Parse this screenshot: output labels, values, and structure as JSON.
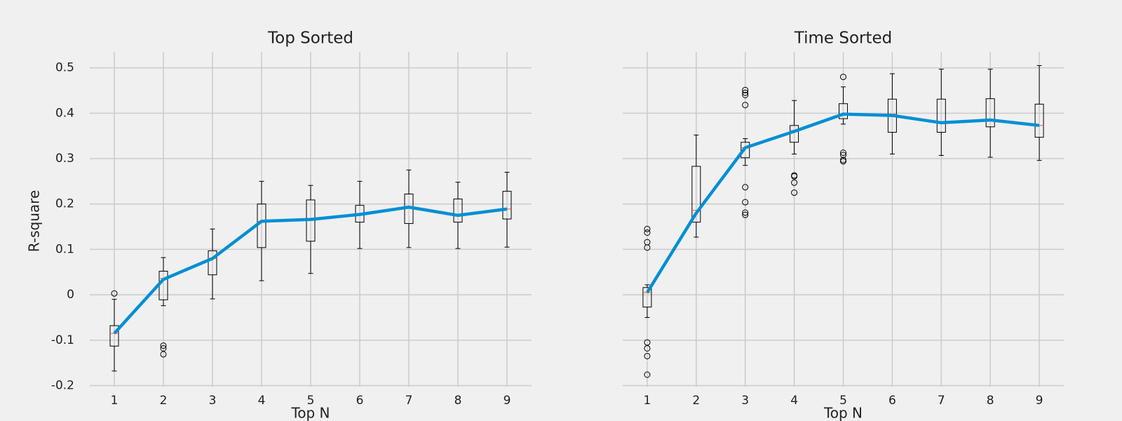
{
  "chart_data": [
    {
      "type": "box",
      "title": "Top Sorted",
      "xlabel": "Top N",
      "ylabel": "R-square",
      "x": [
        1,
        2,
        3,
        4,
        5,
        6,
        7,
        8,
        9
      ],
      "xlim": [
        0.5,
        9.5
      ],
      "xticks": [
        1,
        2,
        3,
        4,
        5,
        6,
        7,
        8,
        9
      ],
      "ylim": [
        -0.21,
        0.535
      ],
      "yticks": [
        -0.2,
        -0.1,
        0.0,
        0.1,
        0.2,
        0.3,
        0.4,
        0.5
      ],
      "show_yticklabels": true,
      "grid": true,
      "box_color": "#000000",
      "median_color": "#fc4f30",
      "line_color": "#008fd5",
      "boxes": [
        {
          "whislo": -0.168,
          "q1": -0.113,
          "med": -0.085,
          "q3": -0.068,
          "whishi": -0.01,
          "fliers": [
            0.003
          ]
        },
        {
          "whislo": -0.024,
          "q1": -0.011,
          "med": 0.036,
          "q3": 0.052,
          "whishi": 0.082,
          "fliers": [
            -0.112,
            -0.118,
            -0.131
          ]
        },
        {
          "whislo": -0.009,
          "q1": 0.044,
          "med": 0.08,
          "q3": 0.097,
          "whishi": 0.145,
          "fliers": []
        },
        {
          "whislo": 0.031,
          "q1": 0.104,
          "med": 0.162,
          "q3": 0.2,
          "whishi": 0.25,
          "fliers": []
        },
        {
          "whislo": 0.047,
          "q1": 0.118,
          "med": 0.167,
          "q3": 0.209,
          "whishi": 0.241,
          "fliers": []
        },
        {
          "whislo": 0.102,
          "q1": 0.16,
          "med": 0.178,
          "q3": 0.197,
          "whishi": 0.25,
          "fliers": []
        },
        {
          "whislo": 0.104,
          "q1": 0.157,
          "med": 0.193,
          "q3": 0.222,
          "whishi": 0.275,
          "fliers": []
        },
        {
          "whislo": 0.102,
          "q1": 0.16,
          "med": 0.176,
          "q3": 0.211,
          "whishi": 0.248,
          "fliers": []
        },
        {
          "whislo": 0.105,
          "q1": 0.167,
          "med": 0.189,
          "q3": 0.228,
          "whishi": 0.27,
          "fliers": []
        }
      ],
      "line_values": [
        -0.085,
        0.034,
        0.08,
        0.162,
        0.166,
        0.177,
        0.193,
        0.175,
        0.189
      ]
    },
    {
      "type": "box",
      "title": "Time Sorted",
      "xlabel": "Top N",
      "x": [
        1,
        2,
        3,
        4,
        5,
        6,
        7,
        8,
        9
      ],
      "xlim": [
        0.5,
        9.5
      ],
      "xticks": [
        1,
        2,
        3,
        4,
        5,
        6,
        7,
        8,
        9
      ],
      "ylim": [
        -0.21,
        0.535
      ],
      "yticks": [
        -0.2,
        -0.1,
        0.0,
        0.1,
        0.2,
        0.3,
        0.4,
        0.5
      ],
      "show_yticklabels": false,
      "grid": true,
      "box_color": "#000000",
      "median_color": "#fc4f30",
      "line_color": "#008fd5",
      "boxes": [
        {
          "whislo": -0.05,
          "q1": -0.027,
          "med": 0.005,
          "q3": 0.016,
          "whishi": 0.022,
          "fliers": [
            0.145,
            0.137,
            0.116,
            0.104,
            -0.105,
            -0.118,
            -0.135,
            -0.176
          ]
        },
        {
          "whislo": 0.127,
          "q1": 0.16,
          "med": 0.186,
          "q3": 0.283,
          "whishi": 0.352,
          "fliers": []
        },
        {
          "whislo": 0.285,
          "q1": 0.302,
          "med": 0.324,
          "q3": 0.336,
          "whishi": 0.344,
          "fliers": [
            0.451,
            0.445,
            0.44,
            0.418,
            0.237,
            0.204,
            0.181,
            0.176
          ]
        },
        {
          "whislo": 0.31,
          "q1": 0.336,
          "med": 0.362,
          "q3": 0.373,
          "whishi": 0.428,
          "fliers": [
            0.263,
            0.261,
            0.247,
            0.225
          ]
        },
        {
          "whislo": 0.376,
          "q1": 0.388,
          "med": 0.398,
          "q3": 0.421,
          "whishi": 0.458,
          "fliers": [
            0.48,
            0.313,
            0.308,
            0.297,
            0.294
          ]
        },
        {
          "whislo": 0.31,
          "q1": 0.358,
          "med": 0.398,
          "q3": 0.431,
          "whishi": 0.487,
          "fliers": []
        },
        {
          "whislo": 0.307,
          "q1": 0.358,
          "med": 0.379,
          "q3": 0.431,
          "whishi": 0.497,
          "fliers": []
        },
        {
          "whislo": 0.303,
          "q1": 0.37,
          "med": 0.385,
          "q3": 0.432,
          "whishi": 0.497,
          "fliers": []
        },
        {
          "whislo": 0.296,
          "q1": 0.347,
          "med": 0.373,
          "q3": 0.42,
          "whishi": 0.505,
          "fliers": []
        }
      ],
      "line_values": [
        0.005,
        0.18,
        0.324,
        0.36,
        0.398,
        0.395,
        0.379,
        0.385,
        0.373
      ]
    }
  ]
}
